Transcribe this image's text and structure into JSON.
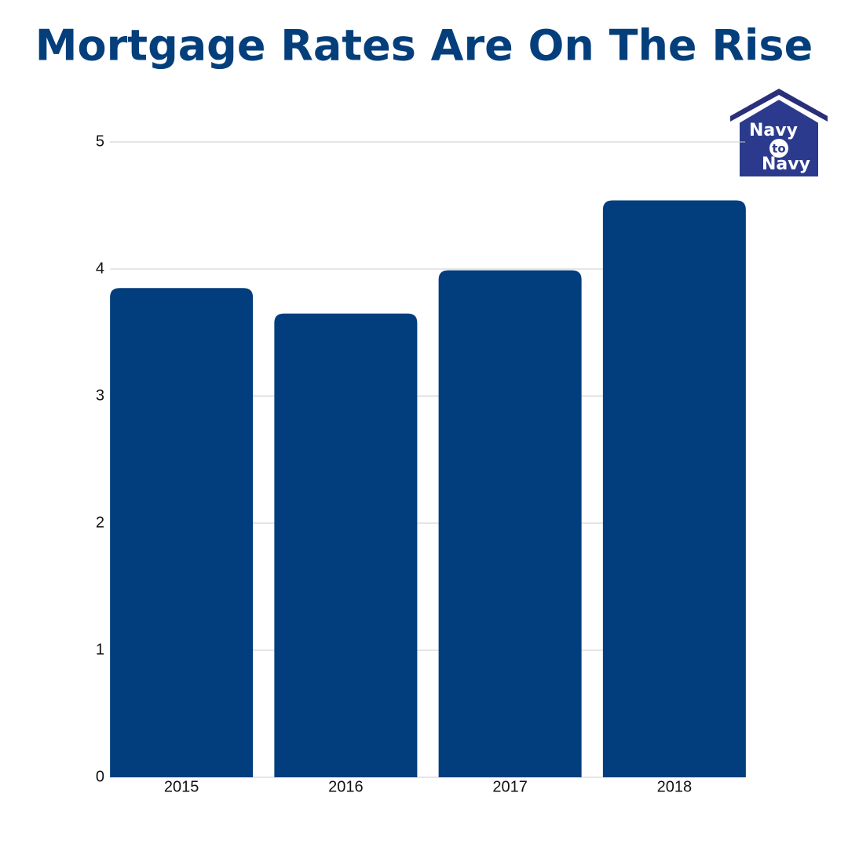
{
  "chart_data": {
    "type": "bar",
    "title": "Mortgage Rates Are On The Rise",
    "categories": [
      "2015",
      "2016",
      "2017",
      "2018"
    ],
    "values": [
      3.85,
      3.65,
      3.99,
      4.54
    ],
    "color": "#023e7d",
    "ylim": [
      0,
      5
    ],
    "yticks": [
      0,
      1,
      2,
      3,
      4,
      5
    ],
    "grid": true
  },
  "logo": {
    "lines": [
      "Navy",
      "to",
      "Navy"
    ]
  }
}
